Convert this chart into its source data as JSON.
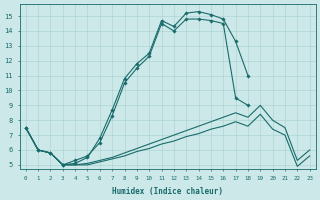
{
  "x": [
    0,
    1,
    2,
    3,
    4,
    5,
    6,
    7,
    8,
    9,
    10,
    11,
    12,
    13,
    14,
    15,
    16,
    17,
    18,
    19,
    20,
    21,
    22,
    23
  ],
  "y_main": [
    7.5,
    6.0,
    5.8,
    5.0,
    5.1,
    5.5,
    6.8,
    8.7,
    10.8,
    11.8,
    12.5,
    14.7,
    14.3,
    15.2,
    15.3,
    15.1,
    14.8,
    13.3,
    11.0,
    null,
    null,
    null,
    null,
    null
  ],
  "y_second": [
    7.5,
    6.0,
    5.8,
    5.0,
    5.3,
    5.6,
    6.5,
    8.3,
    10.5,
    11.5,
    12.3,
    14.5,
    14.0,
    14.8,
    14.8,
    14.7,
    14.5,
    9.5,
    9.0,
    null,
    null,
    null,
    null,
    null
  ],
  "y_bot1": [
    7.5,
    6.0,
    5.8,
    5.0,
    5.0,
    5.1,
    5.3,
    5.5,
    5.8,
    6.1,
    6.4,
    6.7,
    7.0,
    7.3,
    7.6,
    7.9,
    8.2,
    8.5,
    8.2,
    9.0,
    8.0,
    7.5,
    5.3,
    6.0
  ],
  "y_bot2": [
    7.5,
    6.0,
    5.8,
    5.0,
    5.0,
    5.0,
    5.2,
    5.4,
    5.6,
    5.9,
    6.1,
    6.4,
    6.6,
    6.9,
    7.1,
    7.4,
    7.6,
    7.9,
    7.6,
    8.4,
    7.4,
    7.0,
    4.9,
    5.6
  ],
  "bg_color": "#cce8e8",
  "line_color": "#1a6b6b",
  "grid_color": "#a8d0d0",
  "xlim": [
    -0.5,
    23.5
  ],
  "ylim": [
    4.7,
    15.8
  ],
  "yticks": [
    5,
    6,
    7,
    8,
    9,
    10,
    11,
    12,
    13,
    14,
    15
  ],
  "xticks": [
    0,
    1,
    2,
    3,
    4,
    5,
    6,
    7,
    8,
    9,
    10,
    11,
    12,
    13,
    14,
    15,
    16,
    17,
    18,
    19,
    20,
    21,
    22,
    23
  ],
  "xlabel": "Humidex (Indice chaleur)"
}
